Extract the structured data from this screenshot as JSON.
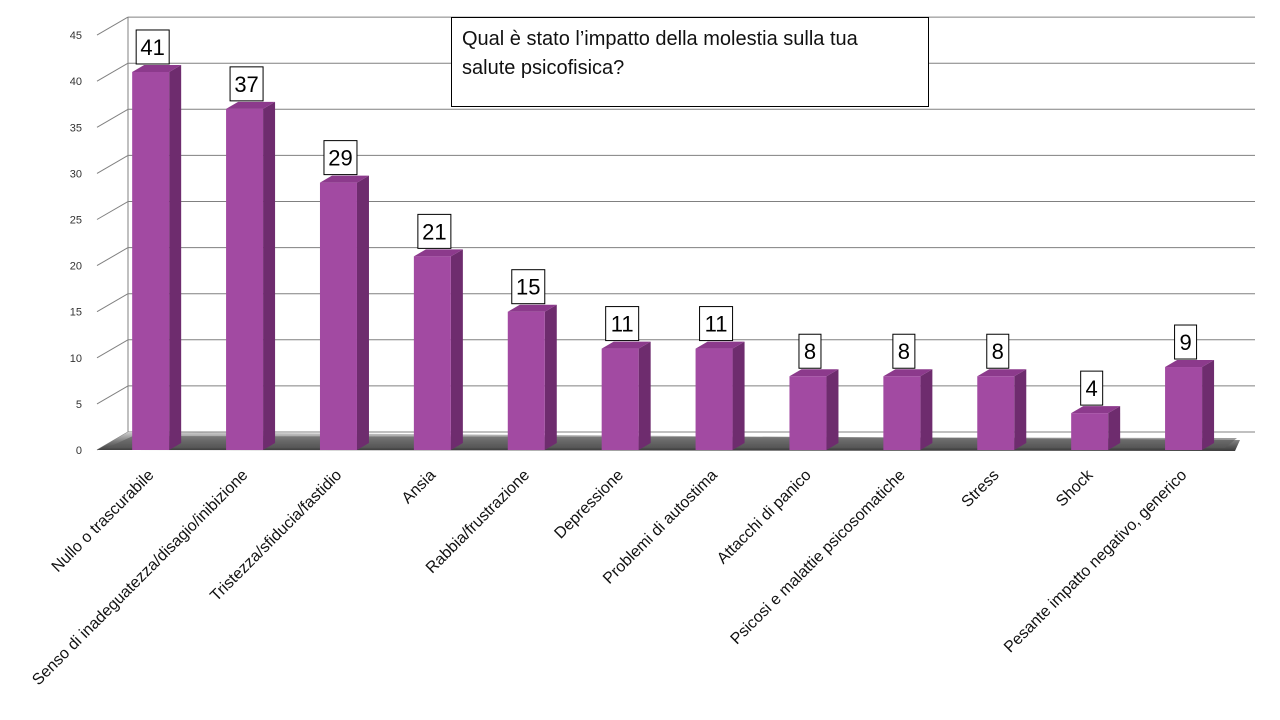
{
  "colors": {
    "bar_front": "#A24AA2",
    "bar_side": "#6E2C6E",
    "bar_top": "#8C3A8C",
    "gridline": "#808080",
    "floor": "#7a7a7a"
  },
  "chart_data": {
    "type": "bar",
    "title_lines": [
      "Qual è stato l’impatto della molestia sulla tua",
      "salute psicofisica?"
    ],
    "categories": [
      "Nullo o trascurabile",
      "Senso di inadeguatezza/disagio/inibizione",
      "Tristezza/sfiducia/fastidio",
      "Ansia",
      "Rabbia/frustrazione",
      "Depressione",
      "Problemi di autostima",
      "Attacchi di panico",
      "Psicosi e malattie psicosomatiche",
      "Stress",
      "Shock",
      "Pesante impatto negativo, generico"
    ],
    "values": [
      41,
      37,
      29,
      21,
      15,
      11,
      11,
      8,
      8,
      8,
      4,
      9
    ],
    "ylim": [
      0,
      45
    ],
    "yticks": [
      "0",
      "5",
      "10",
      "15",
      "20",
      "25",
      "30",
      "35",
      "40",
      "45"
    ],
    "grid": true,
    "style": "3d-bar",
    "data_labels": true
  }
}
